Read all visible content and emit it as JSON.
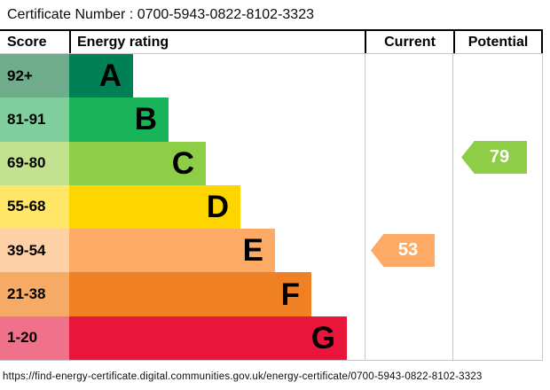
{
  "title": "Certificate Number : 0700-5943-0822-8102-3323",
  "header": {
    "score": "Score",
    "energy_rating": "Energy rating",
    "current": "Current",
    "potential": "Potential"
  },
  "chart_data": {
    "type": "bar",
    "subtype": "epc-energy-rating",
    "orientation": "horizontal",
    "legend_position": "none",
    "bands": [
      {
        "letter": "A",
        "range": "92+",
        "bar_color": "#008054",
        "range_bg": "#6fac8b"
      },
      {
        "letter": "B",
        "range": "81-91",
        "bar_color": "#19b459",
        "range_bg": "#7fce9b"
      },
      {
        "letter": "C",
        "range": "69-80",
        "bar_color": "#8dce46",
        "range_bg": "#c2e28f"
      },
      {
        "letter": "D",
        "range": "55-68",
        "bar_color": "#ffd500",
        "range_bg": "#ffe669"
      },
      {
        "letter": "E",
        "range": "39-54",
        "bar_color": "#fcaa65",
        "range_bg": "#fdd0a5"
      },
      {
        "letter": "F",
        "range": "21-38",
        "bar_color": "#ef8023",
        "range_bg": "#f5ab66"
      },
      {
        "letter": "G",
        "range": "1-20",
        "bar_color": "#e9153b",
        "range_bg": "#f0718a"
      }
    ],
    "current": {
      "value": "53",
      "band": "E",
      "color": "#fcaa65"
    },
    "potential": {
      "value": "79",
      "band": "C",
      "color": "#8dce46"
    }
  },
  "footer_url": "https://find-energy-certificate.digital.communities.gov.uk/energy-certificate/0700-5943-0822-8102-3323"
}
